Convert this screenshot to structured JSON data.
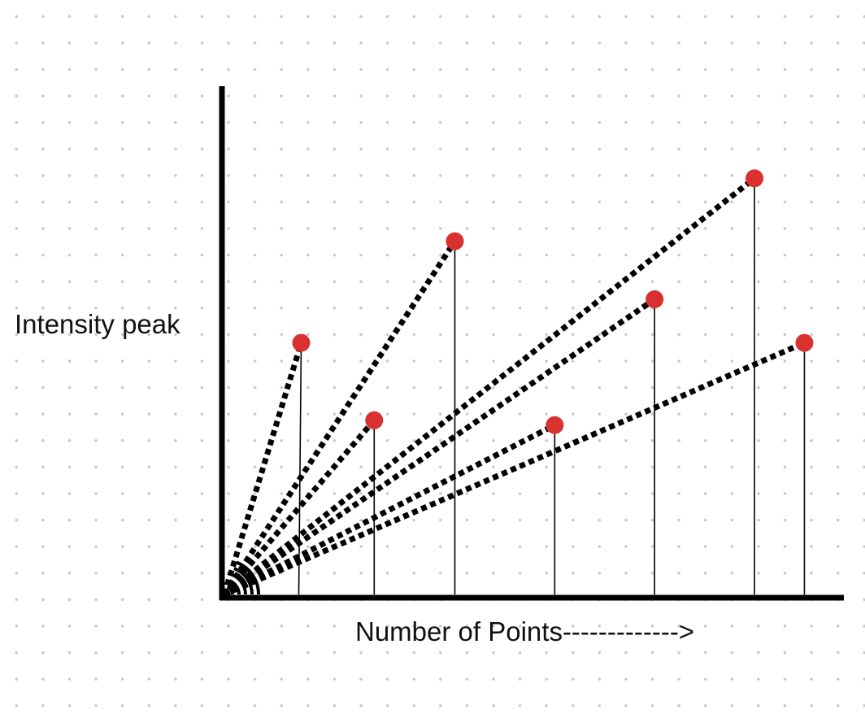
{
  "chart_data": {
    "type": "scatter",
    "ylabel": "Intensity peak",
    "xlabel": "Number of Points------------->",
    "points": [
      {
        "x": 1.0,
        "y": 0.52
      },
      {
        "x": 1.95,
        "y": 0.36
      },
      {
        "x": 3.0,
        "y": 0.73
      },
      {
        "x": 4.3,
        "y": 0.35
      },
      {
        "x": 5.6,
        "y": 0.61
      },
      {
        "x": 6.9,
        "y": 0.86
      },
      {
        "x": 7.55,
        "y": 0.52
      }
    ],
    "xlim": [
      0,
      8
    ],
    "ylim": [
      0,
      1
    ],
    "grid": "dots"
  },
  "colors": {
    "marker": "#d93030",
    "axis": "#000000",
    "dots": "#c9c9c9"
  }
}
